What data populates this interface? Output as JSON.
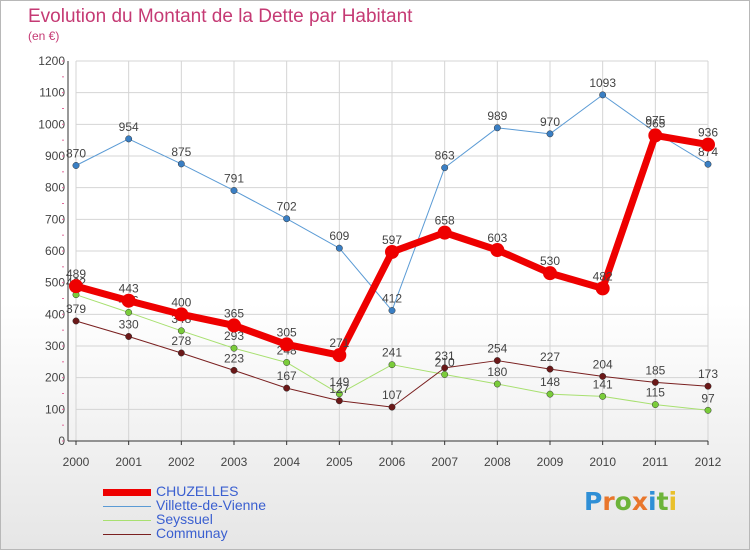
{
  "header": {
    "title": "Evolution du Montant de la Dette par Habitant",
    "subtitle": "(en €)"
  },
  "logo": {
    "text": "Proxiti",
    "colors": [
      "#2f8fd6",
      "#e9762b",
      "#6db43a",
      "#e9762b",
      "#2f8fd6",
      "#6db43a",
      "#e9c02b"
    ]
  },
  "chart_data": {
    "type": "line",
    "title": "Evolution du Montant de la Dette par Habitant",
    "subtitle": "(en €)",
    "xlabel": "",
    "ylabel": "",
    "x": [
      "2000",
      "2001",
      "2002",
      "2003",
      "2004",
      "2005",
      "2006",
      "2007",
      "2008",
      "2009",
      "2010",
      "2011",
      "2012"
    ],
    "yticks": [
      0,
      100,
      200,
      300,
      400,
      500,
      600,
      700,
      800,
      900,
      1000,
      1100,
      1200
    ],
    "ylim": [
      0,
      1200
    ],
    "grid": true,
    "legend_position": "bottom-left",
    "series": [
      {
        "name": "Villette-de-Vienne",
        "color": "#5b9bd5",
        "marker": "#3a7fc4",
        "width": 1,
        "values": [
          870,
          954,
          875,
          791,
          702,
          609,
          412,
          863,
          989,
          970,
          1093,
          975,
          874
        ]
      },
      {
        "name": "Seyssuel",
        "color": "#a8e070",
        "marker": "#7acc3a",
        "width": 1,
        "values": [
          462,
          406,
          348,
          293,
          248,
          149,
          241,
          210,
          180,
          148,
          141,
          115,
          97
        ]
      },
      {
        "name": "Communay",
        "color": "#7a2020",
        "marker": "#6b1818",
        "width": 1,
        "values": [
          379,
          330,
          278,
          223,
          167,
          127,
          107,
          231,
          254,
          227,
          204,
          185,
          173
        ]
      },
      {
        "name": "CHUZELLES",
        "color": "#ee0000",
        "marker": "#ee0000",
        "width": 7,
        "values": [
          489,
          443,
          400,
          365,
          305,
          271,
          597,
          658,
          603,
          530,
          482,
          965,
          936
        ]
      }
    ],
    "legend": [
      "CHUZELLES",
      "Villette-de-Vienne",
      "Seyssuel",
      "Communay"
    ],
    "colors": {
      "grid": "#d4d4d4",
      "axis": "#333333",
      "label": "#444444",
      "title": "#c53a74"
    }
  }
}
